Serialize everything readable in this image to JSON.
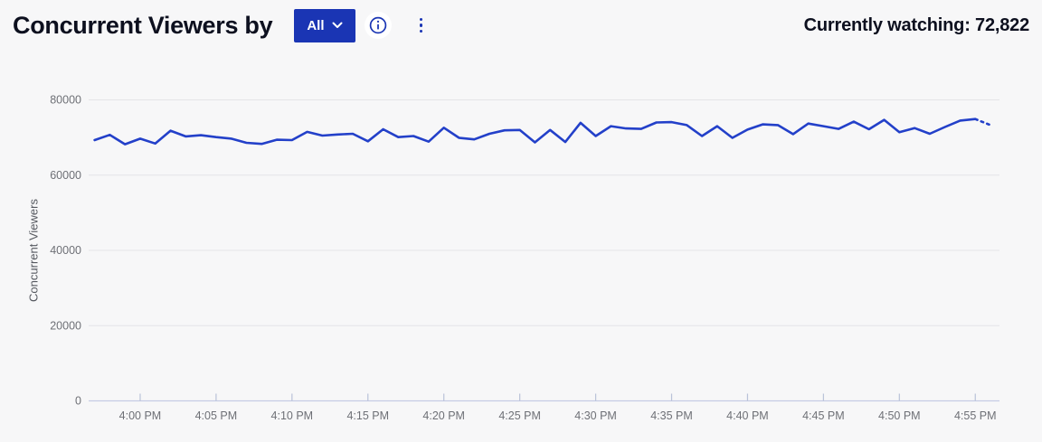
{
  "header": {
    "title": "Concurrent Viewers by",
    "filter_button_label": "All",
    "currently_watching_label": "Currently watching:",
    "currently_watching_value": "72,822"
  },
  "colors": {
    "accent_blue": "#1a35b4",
    "line_blue": "#2340c9",
    "background": "#f7f7f8",
    "grid": "#e4e4e7",
    "baseline": "#c5cbe4",
    "tick": "#b9c2d8",
    "axis_text": "#6e7076",
    "title_text": "#0d101f"
  },
  "chart_data": {
    "type": "line",
    "title": "Concurrent Viewers by All",
    "xlabel": "",
    "ylabel": "Concurrent Viewers",
    "ylim": [
      0,
      80000
    ],
    "yticks": [
      0,
      20000,
      40000,
      60000,
      80000
    ],
    "ytick_labels": [
      "0",
      "20000",
      "40000",
      "60000",
      "80000"
    ],
    "grid": true,
    "legend_position": "none",
    "x_tick_labels": [
      "4:00 PM",
      "4:05 PM",
      "4:10 PM",
      "4:15 PM",
      "4:20 PM",
      "4:25 PM",
      "4:30 PM",
      "4:35 PM",
      "4:40 PM",
      "4:45 PM",
      "4:50 PM",
      "4:55 PM"
    ],
    "x_tick_minutes": [
      3,
      8,
      13,
      18,
      23,
      28,
      33,
      38,
      43,
      48,
      53,
      58
    ],
    "start_time": "3:57 PM",
    "minutes_per_point": 1,
    "series": [
      {
        "name": "Concurrent Viewers",
        "color": "#2340c9",
        "dotted_from_index": 58,
        "values": [
          69300,
          70700,
          68200,
          69700,
          68400,
          71800,
          70300,
          70600,
          70100,
          69700,
          68600,
          68300,
          69400,
          69300,
          71500,
          70500,
          70800,
          71000,
          69000,
          72200,
          70100,
          70400,
          68900,
          72600,
          69900,
          69500,
          71000,
          71900,
          72000,
          68700,
          72000,
          68800,
          73900,
          70400,
          73000,
          72400,
          72300,
          74000,
          74100,
          73300,
          70400,
          73000,
          69900,
          72100,
          73500,
          73300,
          70900,
          73700,
          73000,
          72300,
          74200,
          72200,
          74700,
          71400,
          72500,
          71000,
          72800,
          74500,
          74900,
          73300
        ]
      }
    ]
  }
}
